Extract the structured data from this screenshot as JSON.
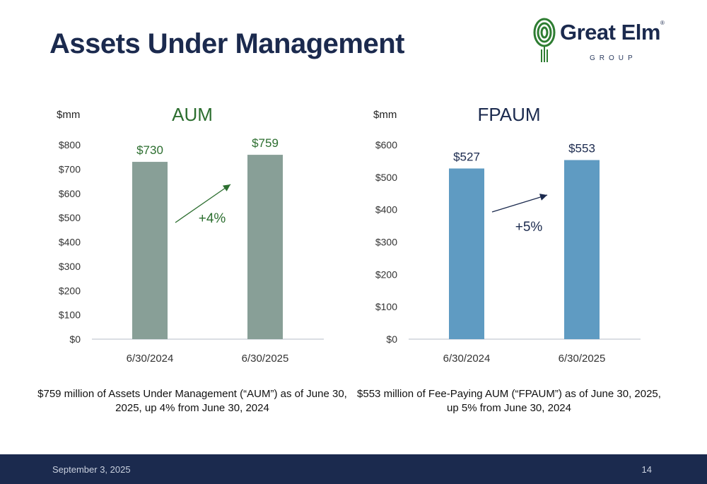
{
  "page": {
    "title": "Assets Under Management",
    "logo_name": "Great Elm",
    "logo_reg": "®",
    "logo_sub": "GROUP"
  },
  "footer": {
    "date": "September 3, 2025",
    "page_number": "14"
  },
  "captions": {
    "aum": "$759 million of Assets Under Management (“AUM”) as of June 30, 2025, up 4% from June 30, 2024",
    "fpaum": "$553 million of Fee-Paying AUM (“FPAUM”) as of June 30, 2025, up 5% from June 30, 2024"
  },
  "colors": {
    "aum_bar": "#889f97",
    "fpaum_bar": "#5f9bc2",
    "aum_label": "#2c6e2f",
    "navy": "#1b2a4e",
    "axis": "#cfd4dc"
  },
  "chart_data": [
    {
      "type": "bar",
      "title": "AUM",
      "ylabel": "$mm",
      "categories": [
        "6/30/2024",
        "6/30/2025"
      ],
      "values": [
        730,
        759
      ],
      "value_labels": [
        "$730",
        "$759"
      ],
      "ylim": [
        0,
        800
      ],
      "yticks": [
        0,
        100,
        200,
        300,
        400,
        500,
        600,
        700,
        800
      ],
      "ytick_labels": [
        "$0",
        "$100",
        "$200",
        "$300",
        "$400",
        "$500",
        "$600",
        "$700",
        "$800"
      ],
      "annotation": "+4%",
      "grid": false
    },
    {
      "type": "bar",
      "title": "FPAUM",
      "ylabel": "$mm",
      "categories": [
        "6/30/2024",
        "6/30/2025"
      ],
      "values": [
        527,
        553
      ],
      "value_labels": [
        "$527",
        "$553"
      ],
      "ylim": [
        0,
        600
      ],
      "yticks": [
        0,
        100,
        200,
        300,
        400,
        500,
        600
      ],
      "ytick_labels": [
        "$0",
        "$100",
        "$200",
        "$300",
        "$400",
        "$500",
        "$600"
      ],
      "annotation": "+5%",
      "grid": false
    }
  ]
}
